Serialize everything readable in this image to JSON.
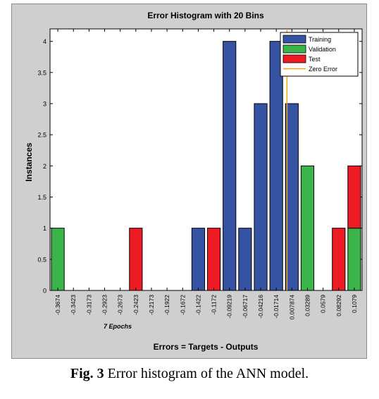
{
  "figure": {
    "caption_label": "Fig. 3",
    "caption_text": "Error histogram of the ANN model."
  },
  "chart_data": {
    "type": "bar",
    "title": "Error Histogram with 20 Bins",
    "xlabel": "Errors = Targets - Outputs",
    "ylabel": "Instances",
    "annotation": "7 Epochs",
    "ylim": [
      0,
      4.2
    ],
    "yticks": [
      "0",
      "0.5",
      "1",
      "1.5",
      "2",
      "2.5",
      "3",
      "3.5",
      "4"
    ],
    "categories": [
      "-0.3674",
      "-0.3423",
      "-0.3173",
      "-0.2923",
      "-0.2673",
      "-0.2423",
      "-0.2173",
      "-0.1922",
      "-0.1672",
      "-0.1422",
      "-0.1172",
      "-0.09219",
      "-0.06717",
      "-0.04216",
      "-0.01714",
      "0.007874",
      "0.03289",
      "0.0579",
      "0.08292",
      "0.1079"
    ],
    "stacked": true,
    "series": [
      {
        "name": "Training",
        "color": "#3653a3",
        "values": [
          0,
          0,
          0,
          0,
          0,
          0,
          0,
          0,
          0,
          1,
          0,
          4,
          1,
          3,
          4,
          3,
          0,
          0,
          0,
          0
        ]
      },
      {
        "name": "Validation",
        "color": "#3bb54a",
        "values": [
          1,
          0,
          0,
          0,
          0,
          0,
          0,
          0,
          0,
          0,
          0,
          0,
          0,
          0,
          0,
          0,
          2,
          0,
          0,
          1
        ]
      },
      {
        "name": "Test",
        "color": "#ed1c24",
        "values": [
          0,
          0,
          0,
          0,
          0,
          1,
          0,
          0,
          0,
          0,
          1,
          0,
          0,
          0,
          0,
          0,
          0,
          0,
          1,
          1
        ]
      }
    ],
    "zero_error": {
      "name": "Zero Error",
      "color": "#f7a21b",
      "x": 0
    },
    "legend_position": "top-right",
    "grid": false
  }
}
